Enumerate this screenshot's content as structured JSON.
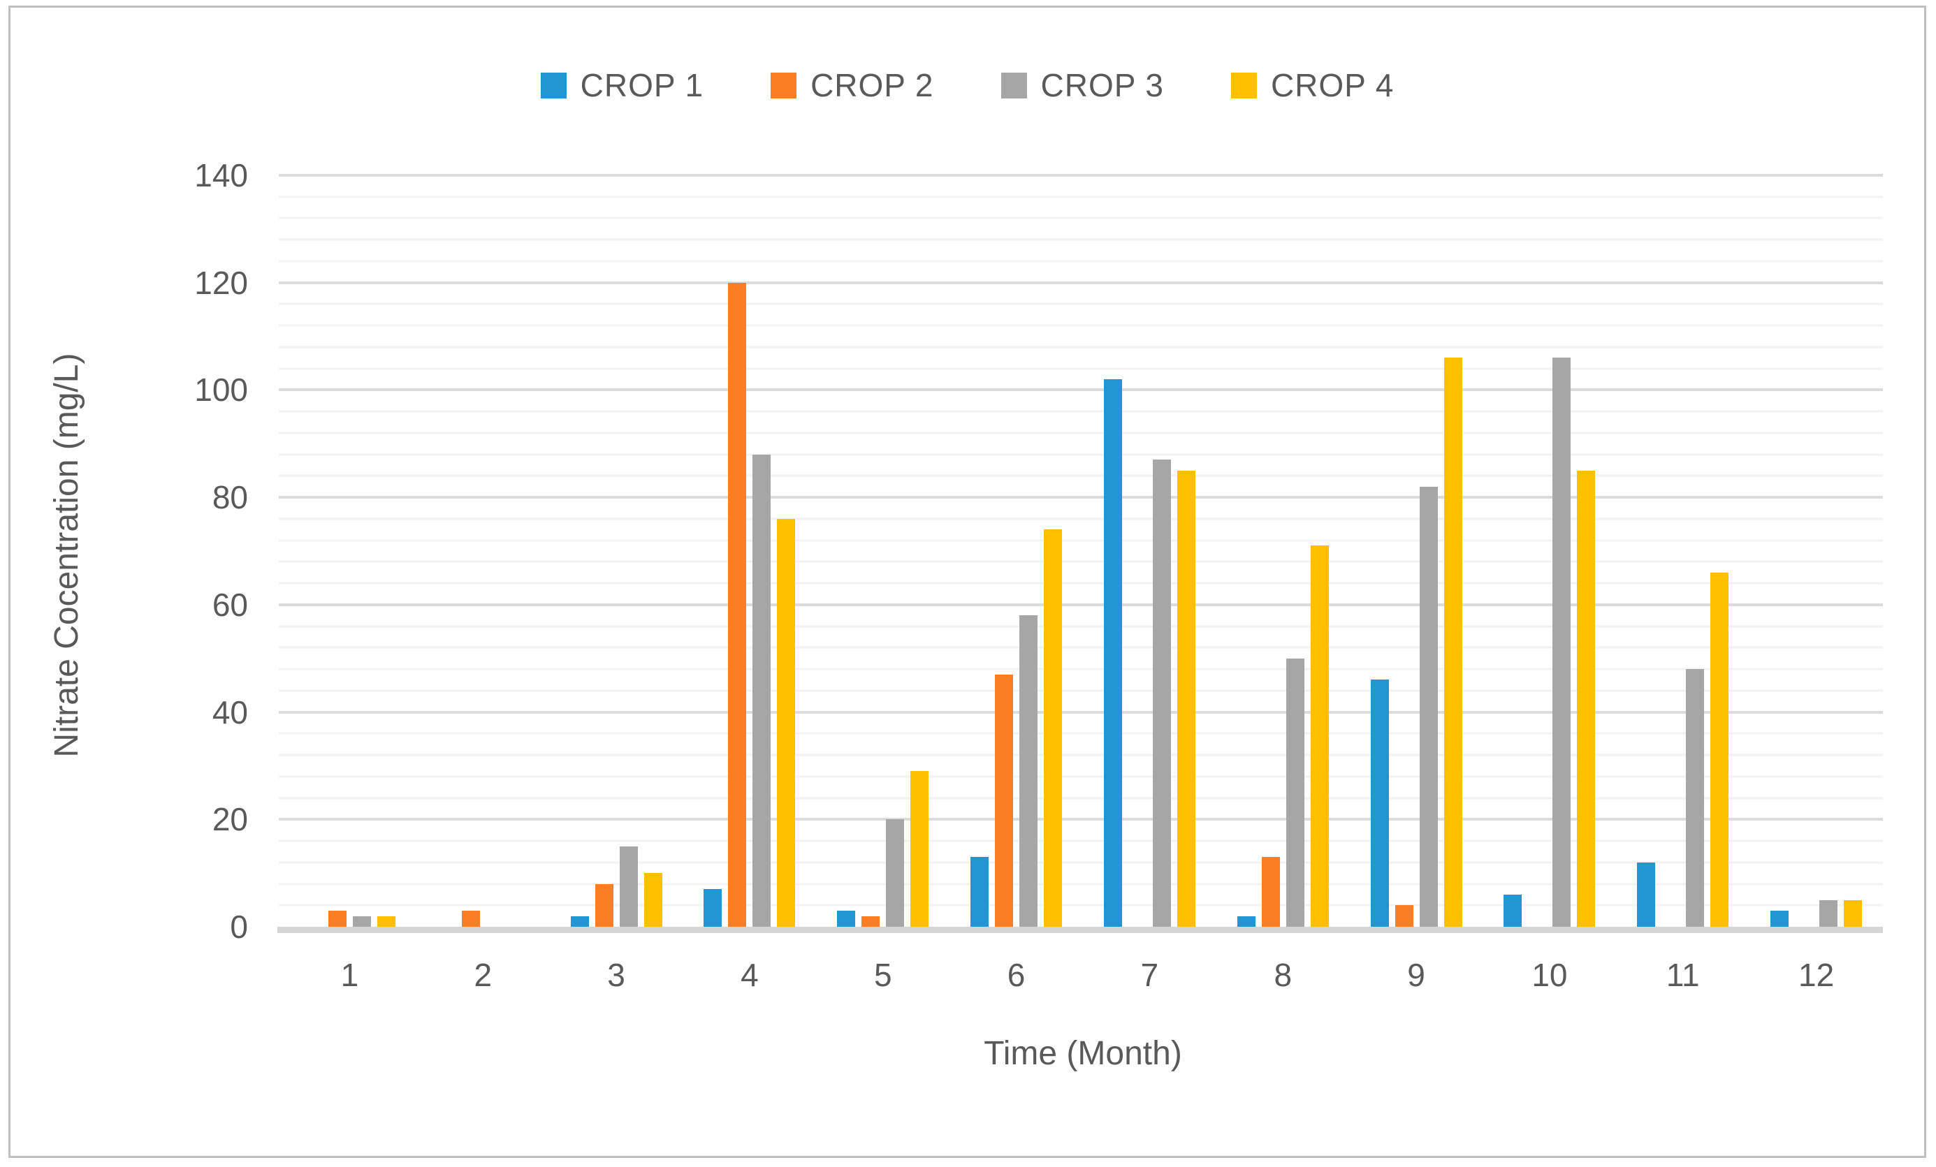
{
  "chart_data": {
    "type": "bar",
    "title": "",
    "xlabel": "Time (Month)",
    "ylabel": "Nitrate Cocentration (mg/L)",
    "categories": [
      "1",
      "2",
      "3",
      "4",
      "5",
      "6",
      "7",
      "8",
      "9",
      "10",
      "11",
      "12"
    ],
    "series": [
      {
        "name": "CROP 1",
        "color": "#2196d3",
        "values": [
          0,
          0,
          2,
          7,
          3,
          13,
          102,
          2,
          46,
          6,
          12,
          3
        ]
      },
      {
        "name": "CROP 2",
        "color": "#fb7d24",
        "values": [
          3,
          3,
          8,
          120,
          2,
          47,
          0,
          13,
          4,
          0,
          0,
          0
        ]
      },
      {
        "name": "CROP 3",
        "color": "#a6a6a6",
        "values": [
          2,
          0,
          15,
          88,
          20,
          58,
          87,
          50,
          82,
          106,
          48,
          5
        ]
      },
      {
        "name": "CROP 4",
        "color": "#ffc000",
        "values": [
          2,
          0,
          10,
          76,
          29,
          74,
          85,
          71,
          106,
          85,
          66,
          5
        ]
      }
    ],
    "ylim": [
      0,
      140
    ],
    "y_major_ticks": [
      0,
      20,
      40,
      60,
      80,
      100,
      120,
      140
    ],
    "y_minor_step": 4,
    "grid": true,
    "legend_position": "top-center",
    "colors": {
      "label_text": "#595959",
      "major_gridline": "#dcdcdc",
      "minor_gridline": "#f2f2f2",
      "axis_line": "#d6d6d6",
      "frame_border": "#bfbfbf",
      "background": "#ffffff"
    }
  }
}
